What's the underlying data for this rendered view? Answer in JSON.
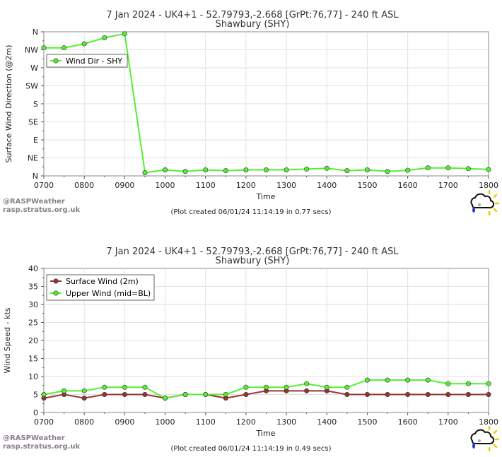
{
  "page": {
    "watermark_line1": "@RASPWeather",
    "watermark_line2": "rasp.stratus.org.uk"
  },
  "chart_data": [
    {
      "type": "line",
      "title": "7 Jan 2024 - UK4+1 - 52.79793,-2.668 [GrPt:76,77]  - 240 ft ASL",
      "subtitle": "Shawbury (SHY)",
      "xlabel": "Time",
      "ylabel": "Surface Wind Direction (@2m)",
      "x_ticks": [
        "0700",
        "0800",
        "0900",
        "1000",
        "1100",
        "1200",
        "1300",
        "1400",
        "1500",
        "1600",
        "1700",
        "1800"
      ],
      "y_ticks": [
        "N",
        "NE",
        "E",
        "SE",
        "S",
        "SW",
        "W",
        "NW",
        "N"
      ],
      "ylim": [
        0,
        360
      ],
      "x": [
        "0700",
        "0730",
        "0800",
        "0830",
        "0900",
        "0930",
        "1000",
        "1030",
        "1100",
        "1130",
        "1200",
        "1230",
        "1300",
        "1330",
        "1400",
        "1430",
        "1500",
        "1530",
        "1600",
        "1630",
        "1700",
        "1730",
        "1800"
      ],
      "series": [
        {
          "name": "Wind Dir - SHY",
          "color": "#55ee33",
          "values": [
            320,
            320,
            330,
            345,
            355,
            8,
            15,
            11,
            15,
            13,
            15,
            15,
            15,
            17,
            19,
            13,
            15,
            11,
            14,
            20,
            20,
            18,
            16
          ]
        }
      ],
      "legend": "top-left",
      "footer": "(Plot created 06/01/24 11:14:19 in 0.77 secs)"
    },
    {
      "type": "line",
      "title": "7 Jan 2024 - UK4+1 - 52.79793,-2.668 [GrPt:76,77]  - 240 ft ASL",
      "subtitle": "Shawbury (SHY)",
      "xlabel": "Time",
      "ylabel": "Wind Speed - kts",
      "x_ticks": [
        "0700",
        "0800",
        "0900",
        "1000",
        "1100",
        "1200",
        "1300",
        "1400",
        "1500",
        "1600",
        "1700",
        "1800"
      ],
      "y_ticks": [
        "0",
        "5",
        "10",
        "15",
        "20",
        "25",
        "30",
        "35",
        "40"
      ],
      "ylim": [
        0,
        40
      ],
      "x": [
        "0700",
        "0730",
        "0800",
        "0830",
        "0900",
        "0930",
        "1000",
        "1030",
        "1100",
        "1130",
        "1200",
        "1230",
        "1300",
        "1330",
        "1400",
        "1430",
        "1500",
        "1530",
        "1600",
        "1630",
        "1700",
        "1730",
        "1800"
      ],
      "series": [
        {
          "name": "Surface Wind (2m)",
          "color": "#993333",
          "values": [
            4,
            5,
            4,
            5,
            5,
            5,
            4,
            5,
            5,
            4,
            5,
            6,
            6,
            6,
            6,
            5,
            5,
            5,
            5,
            5,
            5,
            5,
            5
          ]
        },
        {
          "name": "Upper Wind (mid=BL)",
          "color": "#55ee33",
          "values": [
            5,
            6,
            6,
            7,
            7,
            7,
            4,
            5,
            5,
            5,
            7,
            7,
            7,
            8,
            7,
            7,
            9,
            9,
            9,
            9,
            8,
            8,
            8
          ]
        }
      ],
      "legend": "top-left",
      "footer": "(Plot created 06/01/24 11:14:19 in 0.49 secs)"
    }
  ]
}
